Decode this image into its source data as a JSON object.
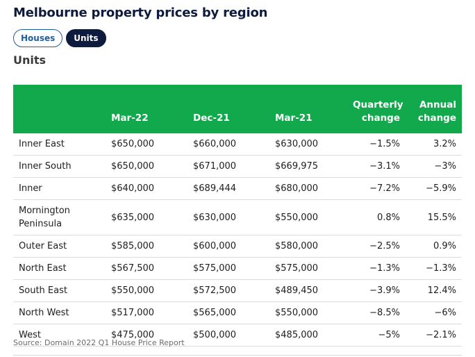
{
  "header": {
    "title": "Melbourne property prices by region",
    "tabs": [
      "Houses",
      "Units"
    ],
    "subtitle": "Units"
  },
  "table": {
    "columns": [
      "",
      "Mar-22",
      "Dec-21",
      "Mar-21",
      "Quarterly change",
      "Annual change"
    ],
    "rows": [
      [
        "Inner East",
        "$650,000",
        "$660,000",
        "$630,000",
        "−1.5%",
        "3.2%"
      ],
      [
        "Inner South",
        "$650,000",
        "$671,000",
        "$669,975",
        "−3.1%",
        "−3%"
      ],
      [
        "Inner",
        "$640,000",
        "$689,444",
        "$680,000",
        "−7.2%",
        "−5.9%"
      ],
      [
        "Mornington Peninsula",
        "$635,000",
        "$630,000",
        "$550,000",
        "0.8%",
        "15.5%"
      ],
      [
        "Outer East",
        "$585,000",
        "$600,000",
        "$580,000",
        "−2.5%",
        "0.9%"
      ],
      [
        "North East",
        "$567,500",
        "$575,000",
        "$575,000",
        "−1.3%",
        "−1.3%"
      ],
      [
        "South East",
        "$550,000",
        "$572,500",
        "$489,450",
        "−3.9%",
        "12.4%"
      ],
      [
        "North West",
        "$517,000",
        "$565,000",
        "$550,000",
        "−8.5%",
        "−6%"
      ],
      [
        "West",
        "$475,000",
        "$500,000",
        "$485,000",
        "−5%",
        "−2.1%"
      ]
    ]
  },
  "footer": {
    "source": "Source: Domain 2022 Q1 House Price Report"
  }
}
